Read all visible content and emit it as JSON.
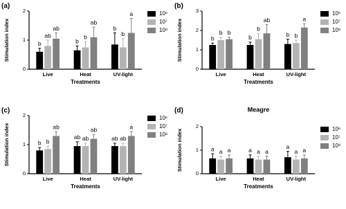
{
  "chart_data": [
    {
      "type": "bar",
      "label": "(a)",
      "ylabel": "Stimulation index",
      "xlabel": "Treatments",
      "categories": [
        "Live",
        "Heat",
        "UV-light"
      ],
      "ylim": [
        0,
        2
      ],
      "yticks": [
        0,
        1,
        2
      ],
      "series": [
        {
          "name": "10⁶",
          "color": "#000000",
          "values": [
            0.6,
            0.65,
            0.85
          ],
          "errors": [
            0.12,
            0.15,
            0.4
          ],
          "significance": [
            "b",
            "b",
            "b"
          ]
        },
        {
          "name": "10⁷",
          "color": "#b3b3b3",
          "values": [
            0.8,
            0.75,
            0.75
          ],
          "errors": [
            0.2,
            0.2,
            0.3
          ],
          "significance": [
            "ab",
            "b",
            "b"
          ]
        },
        {
          "name": "10⁸",
          "color": "#808080",
          "values": [
            1.05,
            1.1,
            1.25
          ],
          "errors": [
            0.2,
            0.35,
            0.5
          ],
          "significance": [
            "ab",
            "ab",
            "a"
          ]
        }
      ]
    },
    {
      "type": "bar",
      "label": "(b)",
      "ylabel": "Stimulation index",
      "xlabel": "Treatments",
      "categories": [
        "Live",
        "Heat",
        "UV-light"
      ],
      "ylim": [
        0,
        3
      ],
      "yticks": [
        0,
        1,
        2,
        3
      ],
      "series": [
        {
          "name": "10⁶",
          "color": "#000000",
          "values": [
            1.25,
            1.25,
            1.3
          ],
          "errors": [
            0.1,
            0.15,
            0.25
          ],
          "significance": [
            "b",
            "b",
            "b"
          ]
        },
        {
          "name": "10⁷",
          "color": "#b3b3b3",
          "values": [
            1.5,
            1.55,
            1.35
          ],
          "errors": [
            0.15,
            0.3,
            0.15
          ],
          "significance": [
            "b",
            "b",
            "b"
          ]
        },
        {
          "name": "10⁸",
          "color": "#808080",
          "values": [
            1.55,
            1.85,
            2.15
          ],
          "errors": [
            0.1,
            0.45,
            0.2
          ],
          "significance": [
            "b",
            "ab",
            "a"
          ]
        }
      ]
    },
    {
      "type": "bar",
      "label": "(c)",
      "ylabel": "Stimulation index",
      "xlabel": "Treatments",
      "categories": [
        "Live",
        "Heat",
        "UV-light"
      ],
      "ylim": [
        0,
        2
      ],
      "yticks": [
        0,
        1,
        2
      ],
      "series": [
        {
          "name": "10⁶",
          "color": "#000000",
          "values": [
            0.8,
            0.95,
            0.95
          ],
          "errors": [
            0.1,
            0.15,
            0.1
          ],
          "significance": [
            "b",
            "ab",
            "ab"
          ]
        },
        {
          "name": "10⁷",
          "color": "#b3b3b3",
          "values": [
            0.85,
            0.95,
            0.95
          ],
          "errors": [
            0.1,
            0.1,
            0.1
          ],
          "significance": [
            "b",
            "ab",
            "ab"
          ]
        },
        {
          "name": "10⁸",
          "color": "#808080",
          "values": [
            1.3,
            1.2,
            1.3
          ],
          "errors": [
            0.15,
            0.15,
            0.15
          ],
          "significance": [
            "ab",
            "ab",
            "a"
          ]
        }
      ]
    },
    {
      "type": "bar",
      "label": "(d)",
      "title": "Meagre",
      "ylabel": "Stimulation index",
      "xlabel": "Treatments",
      "categories": [
        "Live",
        "Heat",
        "UV-light"
      ],
      "ylim": [
        0,
        2
      ],
      "yticks": [
        0,
        1,
        2
      ],
      "series": [
        {
          "name": "10⁶",
          "color": "#000000",
          "values": [
            0.65,
            0.65,
            0.7
          ],
          "errors": [
            0.2,
            0.15,
            0.25
          ],
          "significance": [
            "a",
            "a",
            "a"
          ]
        },
        {
          "name": "10⁷",
          "color": "#b3b3b3",
          "values": [
            0.6,
            0.6,
            0.6
          ],
          "errors": [
            0.15,
            0.15,
            0.15
          ],
          "significance": [
            "a",
            "a",
            "a"
          ]
        },
        {
          "name": "10⁸",
          "color": "#808080",
          "values": [
            0.65,
            0.6,
            0.65
          ],
          "errors": [
            0.15,
            0.15,
            0.15
          ],
          "significance": [
            "a",
            "a",
            "a"
          ]
        }
      ]
    }
  ]
}
